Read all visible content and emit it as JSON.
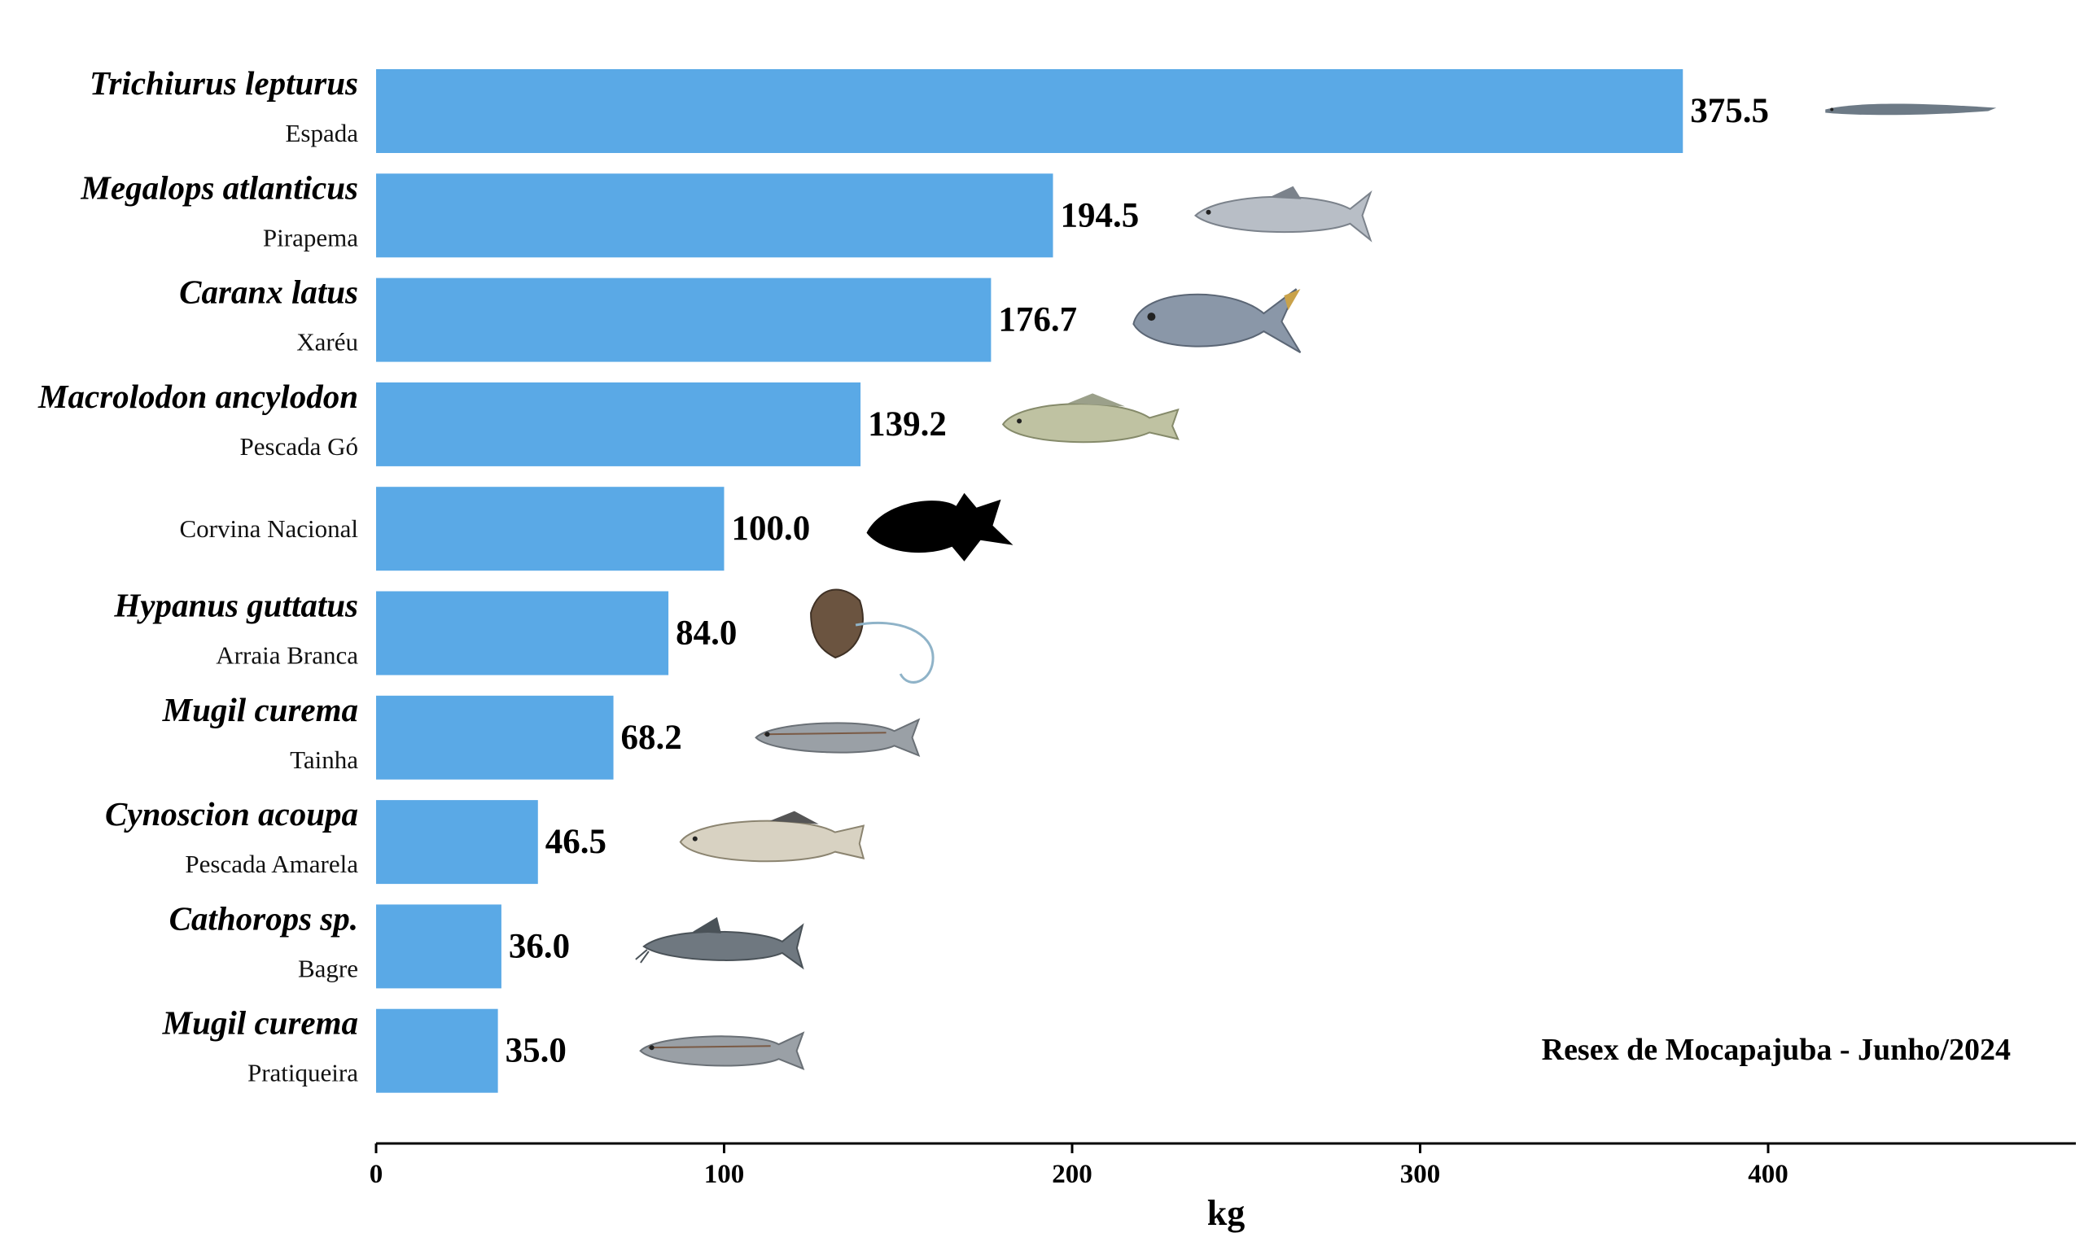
{
  "chart_data": {
    "type": "bar",
    "orientation": "horizontal",
    "title": "",
    "xlabel": "kg",
    "ylabel": "",
    "xlim": [
      0,
      488
    ],
    "xticks": [
      0,
      100,
      200,
      300,
      400
    ],
    "annotation": "Resex de Mocapajuba - Junho/2024",
    "bar_color": "#5aa9e6",
    "categories": [
      {
        "scientific": "Trichiurus lepturus",
        "common": "Espada",
        "value": 375.5,
        "value_label": "375.5",
        "icon": "ribbonfish-icon"
      },
      {
        "scientific": "Megalops atlanticus",
        "common": "Pirapema",
        "value": 194.5,
        "value_label": "194.5",
        "icon": "tarpon-icon"
      },
      {
        "scientific": "Caranx latus",
        "common": "Xaréu",
        "value": 176.7,
        "value_label": "176.7",
        "icon": "jack-fish-icon"
      },
      {
        "scientific": "Macrolodon ancylodon",
        "common": "Pescada Gó",
        "value": 139.2,
        "value_label": "139.2",
        "icon": "weakfish-icon"
      },
      {
        "scientific": "",
        "common": "Corvina Nacional",
        "value": 100.0,
        "value_label": "100.0",
        "icon": "fish-silhouette-icon"
      },
      {
        "scientific": "Hypanus guttatus",
        "common": "Arraia Branca",
        "value": 84.0,
        "value_label": "84.0",
        "icon": "stingray-icon"
      },
      {
        "scientific": "Mugil curema",
        "common": "Tainha",
        "value": 68.2,
        "value_label": "68.2",
        "icon": "mullet-icon"
      },
      {
        "scientific": "Cynoscion acoupa",
        "common": "Pescada Amarela",
        "value": 46.5,
        "value_label": "46.5",
        "icon": "acoupa-weakfish-icon"
      },
      {
        "scientific": "Cathorops sp.",
        "common": "Bagre",
        "value": 36.0,
        "value_label": "36.0",
        "icon": "catfish-icon"
      },
      {
        "scientific": "Mugil curema",
        "common": "Pratiqueira",
        "value": 35.0,
        "value_label": "35.0",
        "icon": "small-mullet-icon"
      }
    ]
  }
}
